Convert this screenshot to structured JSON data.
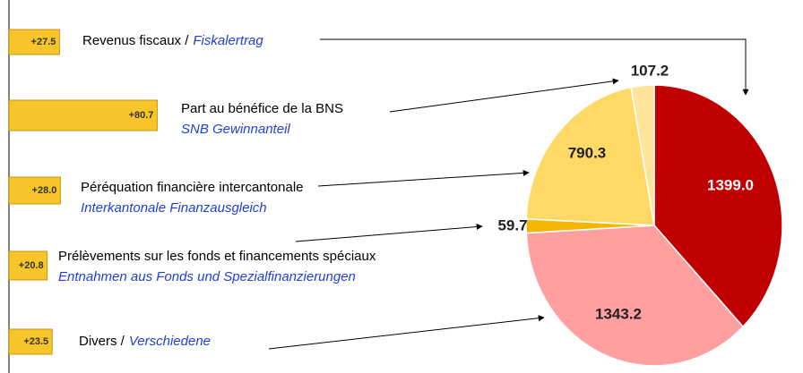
{
  "chart_data": [
    {
      "type": "pie",
      "values": [
        1399.0,
        1343.2,
        59.7,
        790.3,
        107.2
      ],
      "value_labels": [
        "1399.0",
        "1343.2",
        "59.7",
        "790.3",
        "107.2"
      ],
      "colors": [
        "#c00000",
        "#ff9f9f",
        "#f2b705",
        "#ffd966",
        "#ffe49a"
      ]
    },
    {
      "type": "bar",
      "orientation": "horizontal",
      "color": "#f7c52a",
      "categories": [
        {
          "fr": "Revenus fiscaux /",
          "de": "Fiskalertrag"
        },
        {
          "fr": "Part au bénéfice de la BNS",
          "de": "SNB Gewinnanteil"
        },
        {
          "fr": "Péréquation financière intercantonale",
          "de": "Interkantonale Finanzausgleich"
        },
        {
          "fr": "Prélèvements sur les fonds et financements spéciaux",
          "de": "Entnahmen aus Fonds und Spezialfinanzierungen"
        },
        {
          "fr": "Divers /",
          "de": "Verschiedene"
        }
      ],
      "values": [
        27.5,
        80.7,
        28.0,
        20.8,
        23.5
      ],
      "value_labels": [
        "+27.5",
        "+80.7",
        "+28.0",
        "+20.8",
        "+23.5"
      ]
    }
  ]
}
